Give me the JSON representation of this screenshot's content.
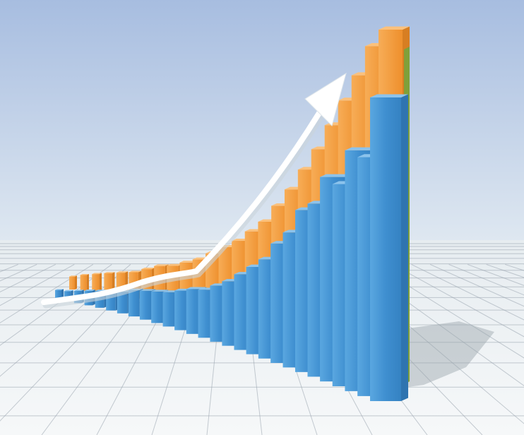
{
  "scene": {
    "description_kind": "3d-render",
    "colors": {
      "sky_top": "#a7bde0",
      "sky_bottom": "#dfe8f1",
      "floor": "#eef2f4",
      "grid": "#97a3ad",
      "blue_bar_front": "#3f8fd0",
      "blue_bar_side": "#2f74b0",
      "blue_bar_top": "#8cc3ec",
      "orange_bar_front": "#f29a3c",
      "orange_bar_side": "#d77e22",
      "orange_bar_top": "#fbc17c",
      "green_bar_side": "#7fa03a",
      "arrow": "#ffffff",
      "shadow": "#9aa4ab"
    },
    "blue_levels": [
      0.05,
      0.05,
      0.06,
      0.07,
      0.08,
      0.09,
      0.1,
      0.12,
      0.13,
      0.14,
      0.15,
      0.17,
      0.19,
      0.2,
      0.23,
      0.26,
      0.3,
      0.34,
      0.38,
      0.45,
      0.5,
      0.59,
      0.62,
      0.72,
      0.7,
      0.82,
      0.8,
      1.0
    ],
    "orange_levels": [
      0.05,
      0.06,
      0.07,
      0.08,
      0.09,
      0.1,
      0.12,
      0.14,
      0.15,
      0.17,
      0.19,
      0.22,
      0.25,
      0.28,
      0.32,
      0.36,
      0.42,
      0.48,
      0.55,
      0.62,
      0.7,
      0.78,
      0.86,
      0.95,
      1.0
    ]
  }
}
